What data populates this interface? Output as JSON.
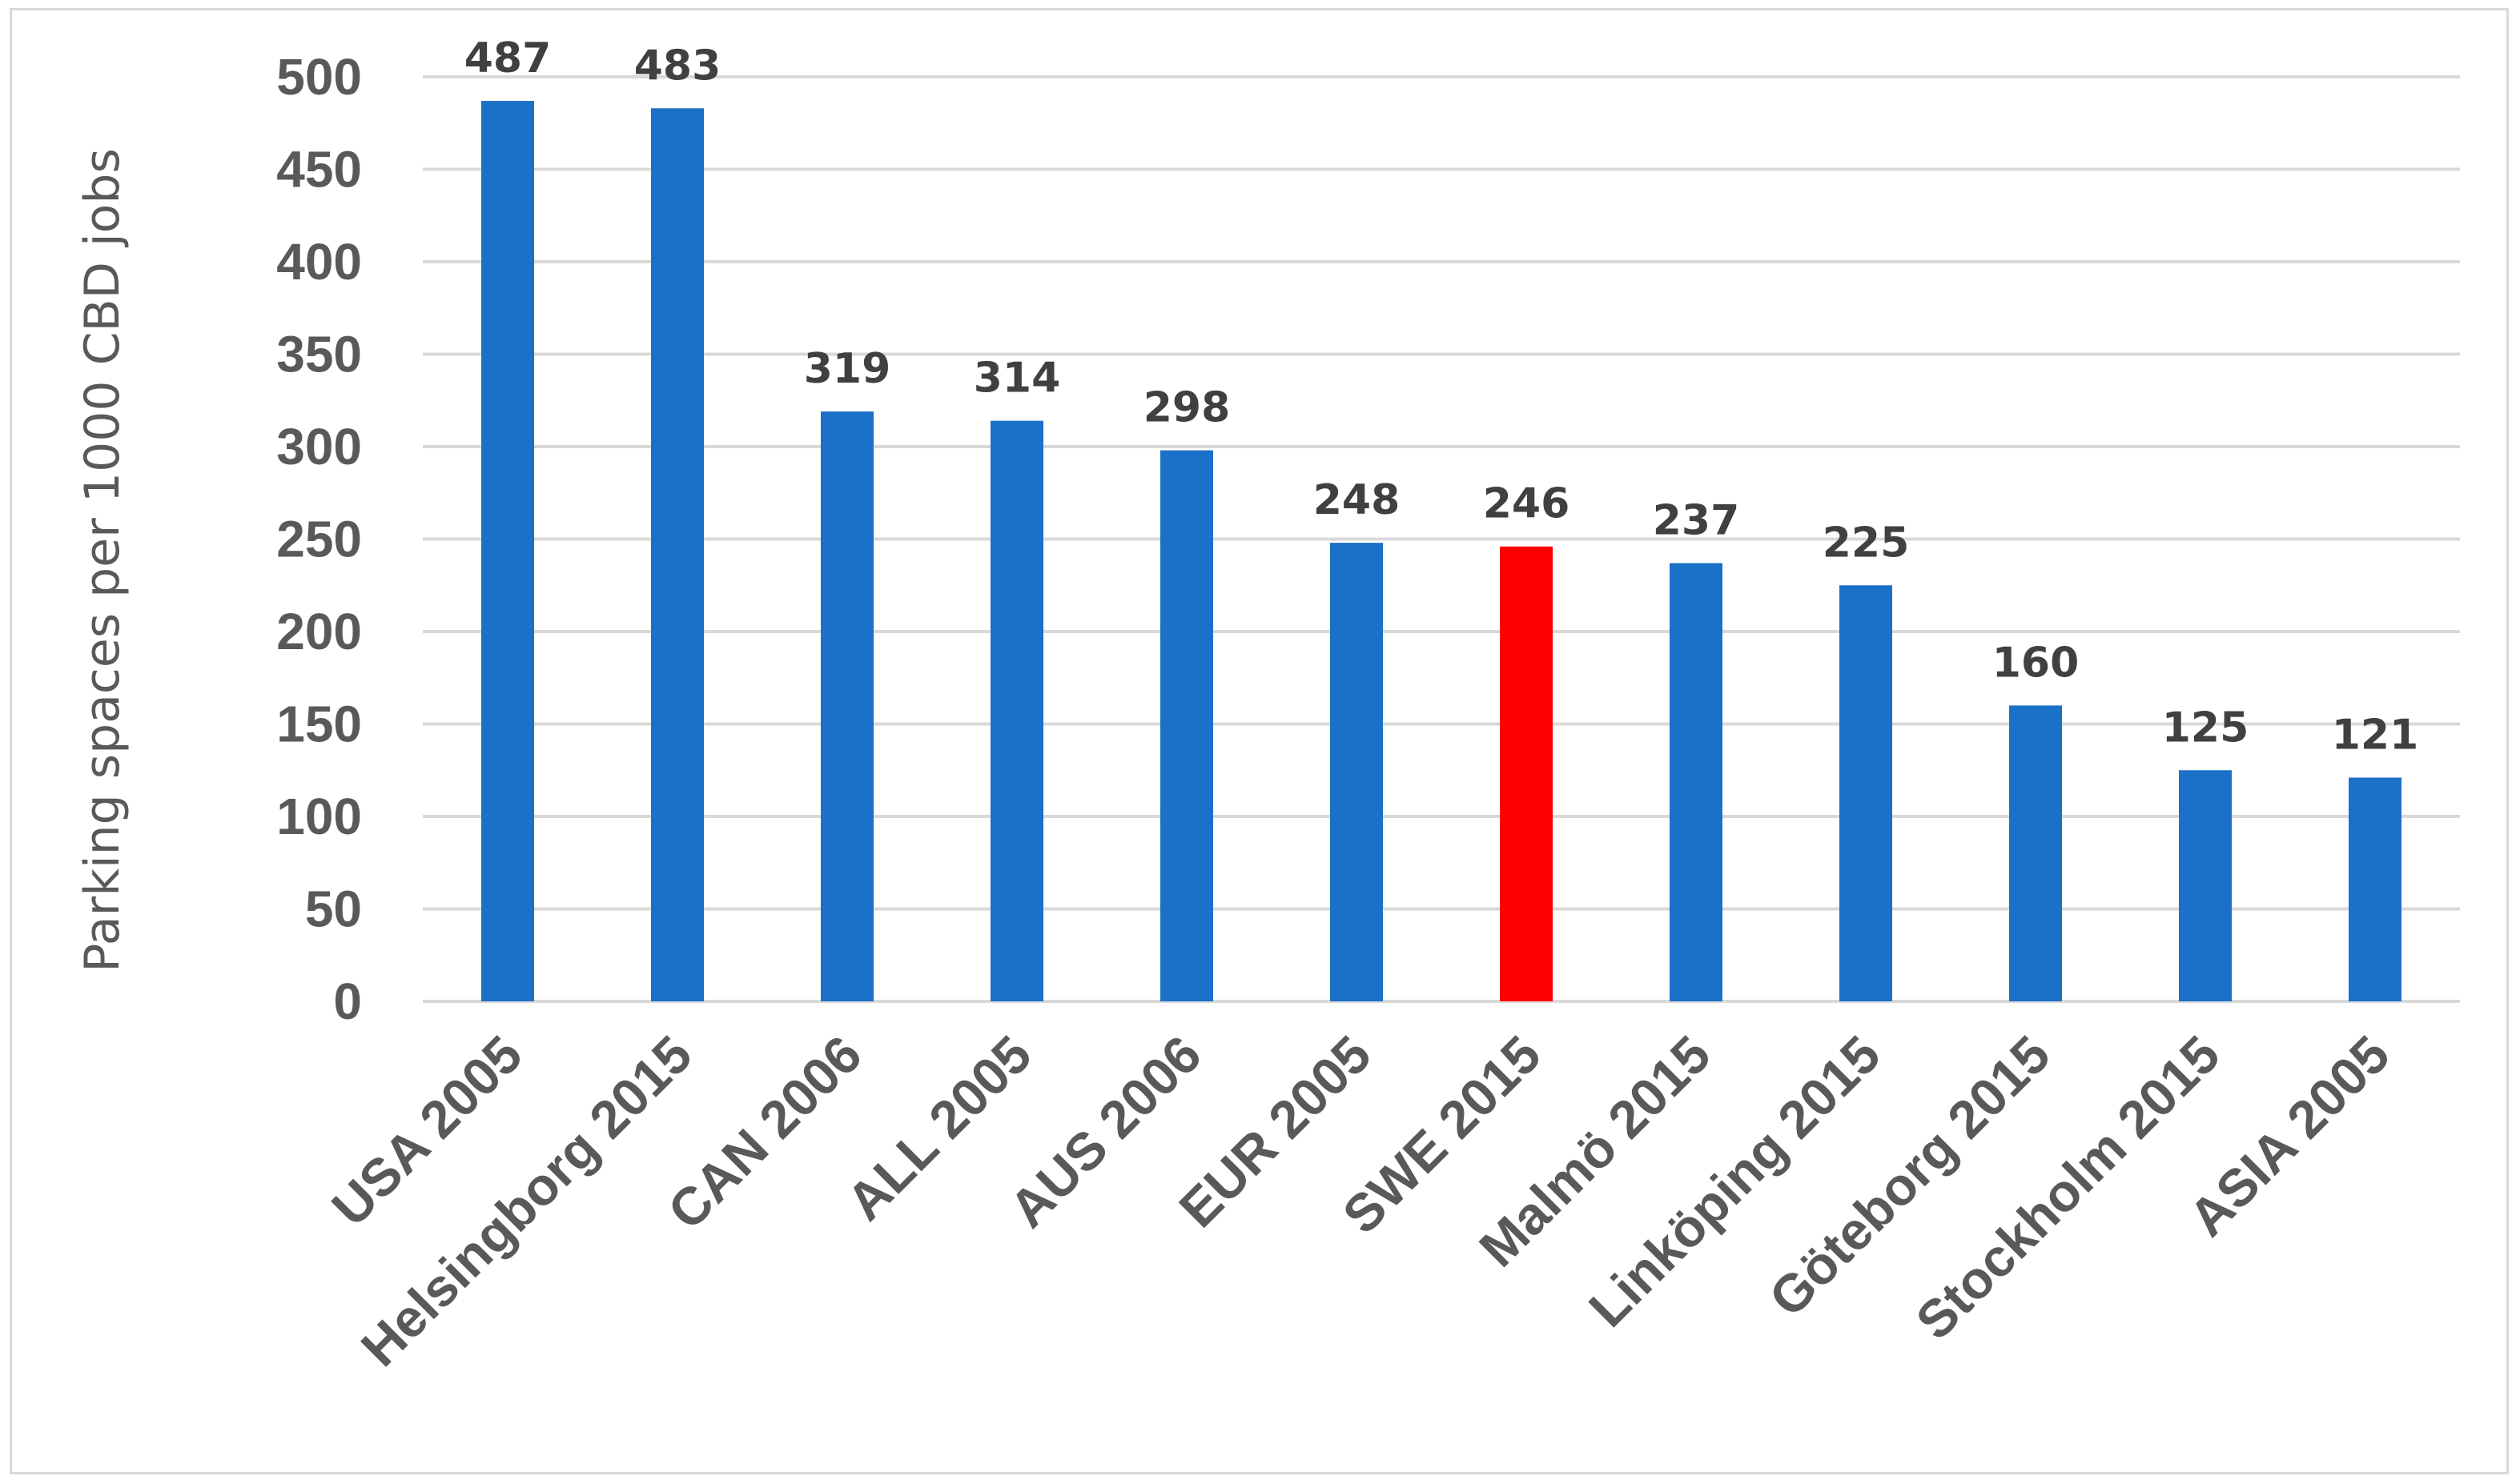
{
  "chart_data": {
    "type": "bar",
    "title": "",
    "xlabel": "",
    "ylabel": "Parking spaces per 1000 CBD jobs",
    "ylim": [
      0,
      500
    ],
    "yticks": [
      0,
      50,
      100,
      150,
      200,
      250,
      300,
      350,
      400,
      450,
      500
    ],
    "grid": true,
    "categories": [
      "USA 2005",
      "Helsingborg 2015",
      "CAN 2006",
      "ALL 2005",
      "AUS 2006",
      "EUR 2005",
      "SWE 2015",
      "Malmö 2015",
      "Linköping 2015",
      "Göteborg 2015",
      "Stockholm 2015",
      "ASIA 2005"
    ],
    "values": [
      487,
      483,
      319,
      314,
      298,
      248,
      246,
      237,
      225,
      160,
      125,
      121
    ],
    "bar_color": "#1b70c7",
    "highlight_color": "#ff0000",
    "highlight_category": "SWE 2015"
  }
}
